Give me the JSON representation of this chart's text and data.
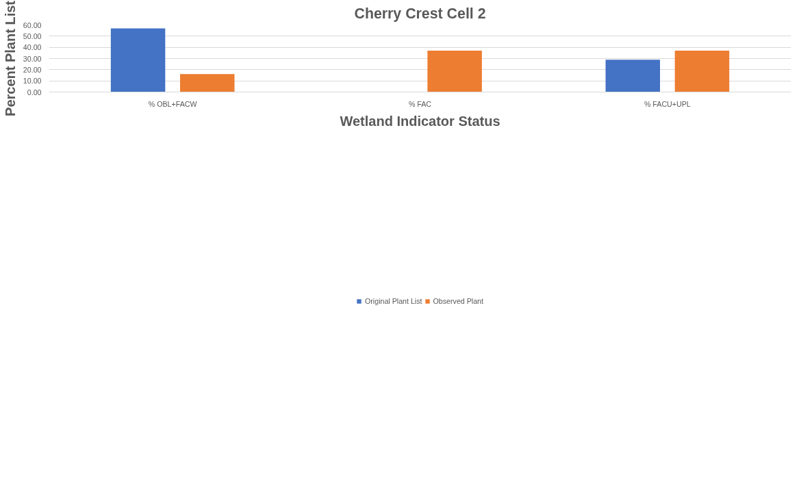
{
  "chart_data": {
    "type": "bar",
    "title": "Cherry Crest Cell 2",
    "xlabel": "Wetland Indicator Status",
    "ylabel": "Percent Plant List",
    "categories": [
      "% OBL+FACW",
      "% FAC",
      "% FACU+UPL"
    ],
    "series": [
      {
        "name": "Original Plant List",
        "color": "#4472c4",
        "values": [
          57,
          null,
          29
        ]
      },
      {
        "name": "Observed Plant",
        "color": "#ed7d31",
        "values": [
          16,
          37,
          37
        ]
      }
    ],
    "ylim": [
      0,
      60
    ],
    "yticks": [
      {
        "value": 0,
        "label": "0.00"
      },
      {
        "value": 10,
        "label": "10.00"
      },
      {
        "value": 20,
        "label": "20.00"
      },
      {
        "value": 30,
        "label": "30.00"
      },
      {
        "value": 40,
        "label": "40.00"
      },
      {
        "value": 50,
        "label": "50.00"
      },
      {
        "value": 60,
        "label": "60.00"
      }
    ],
    "grid": "y",
    "legend": "bottom"
  }
}
